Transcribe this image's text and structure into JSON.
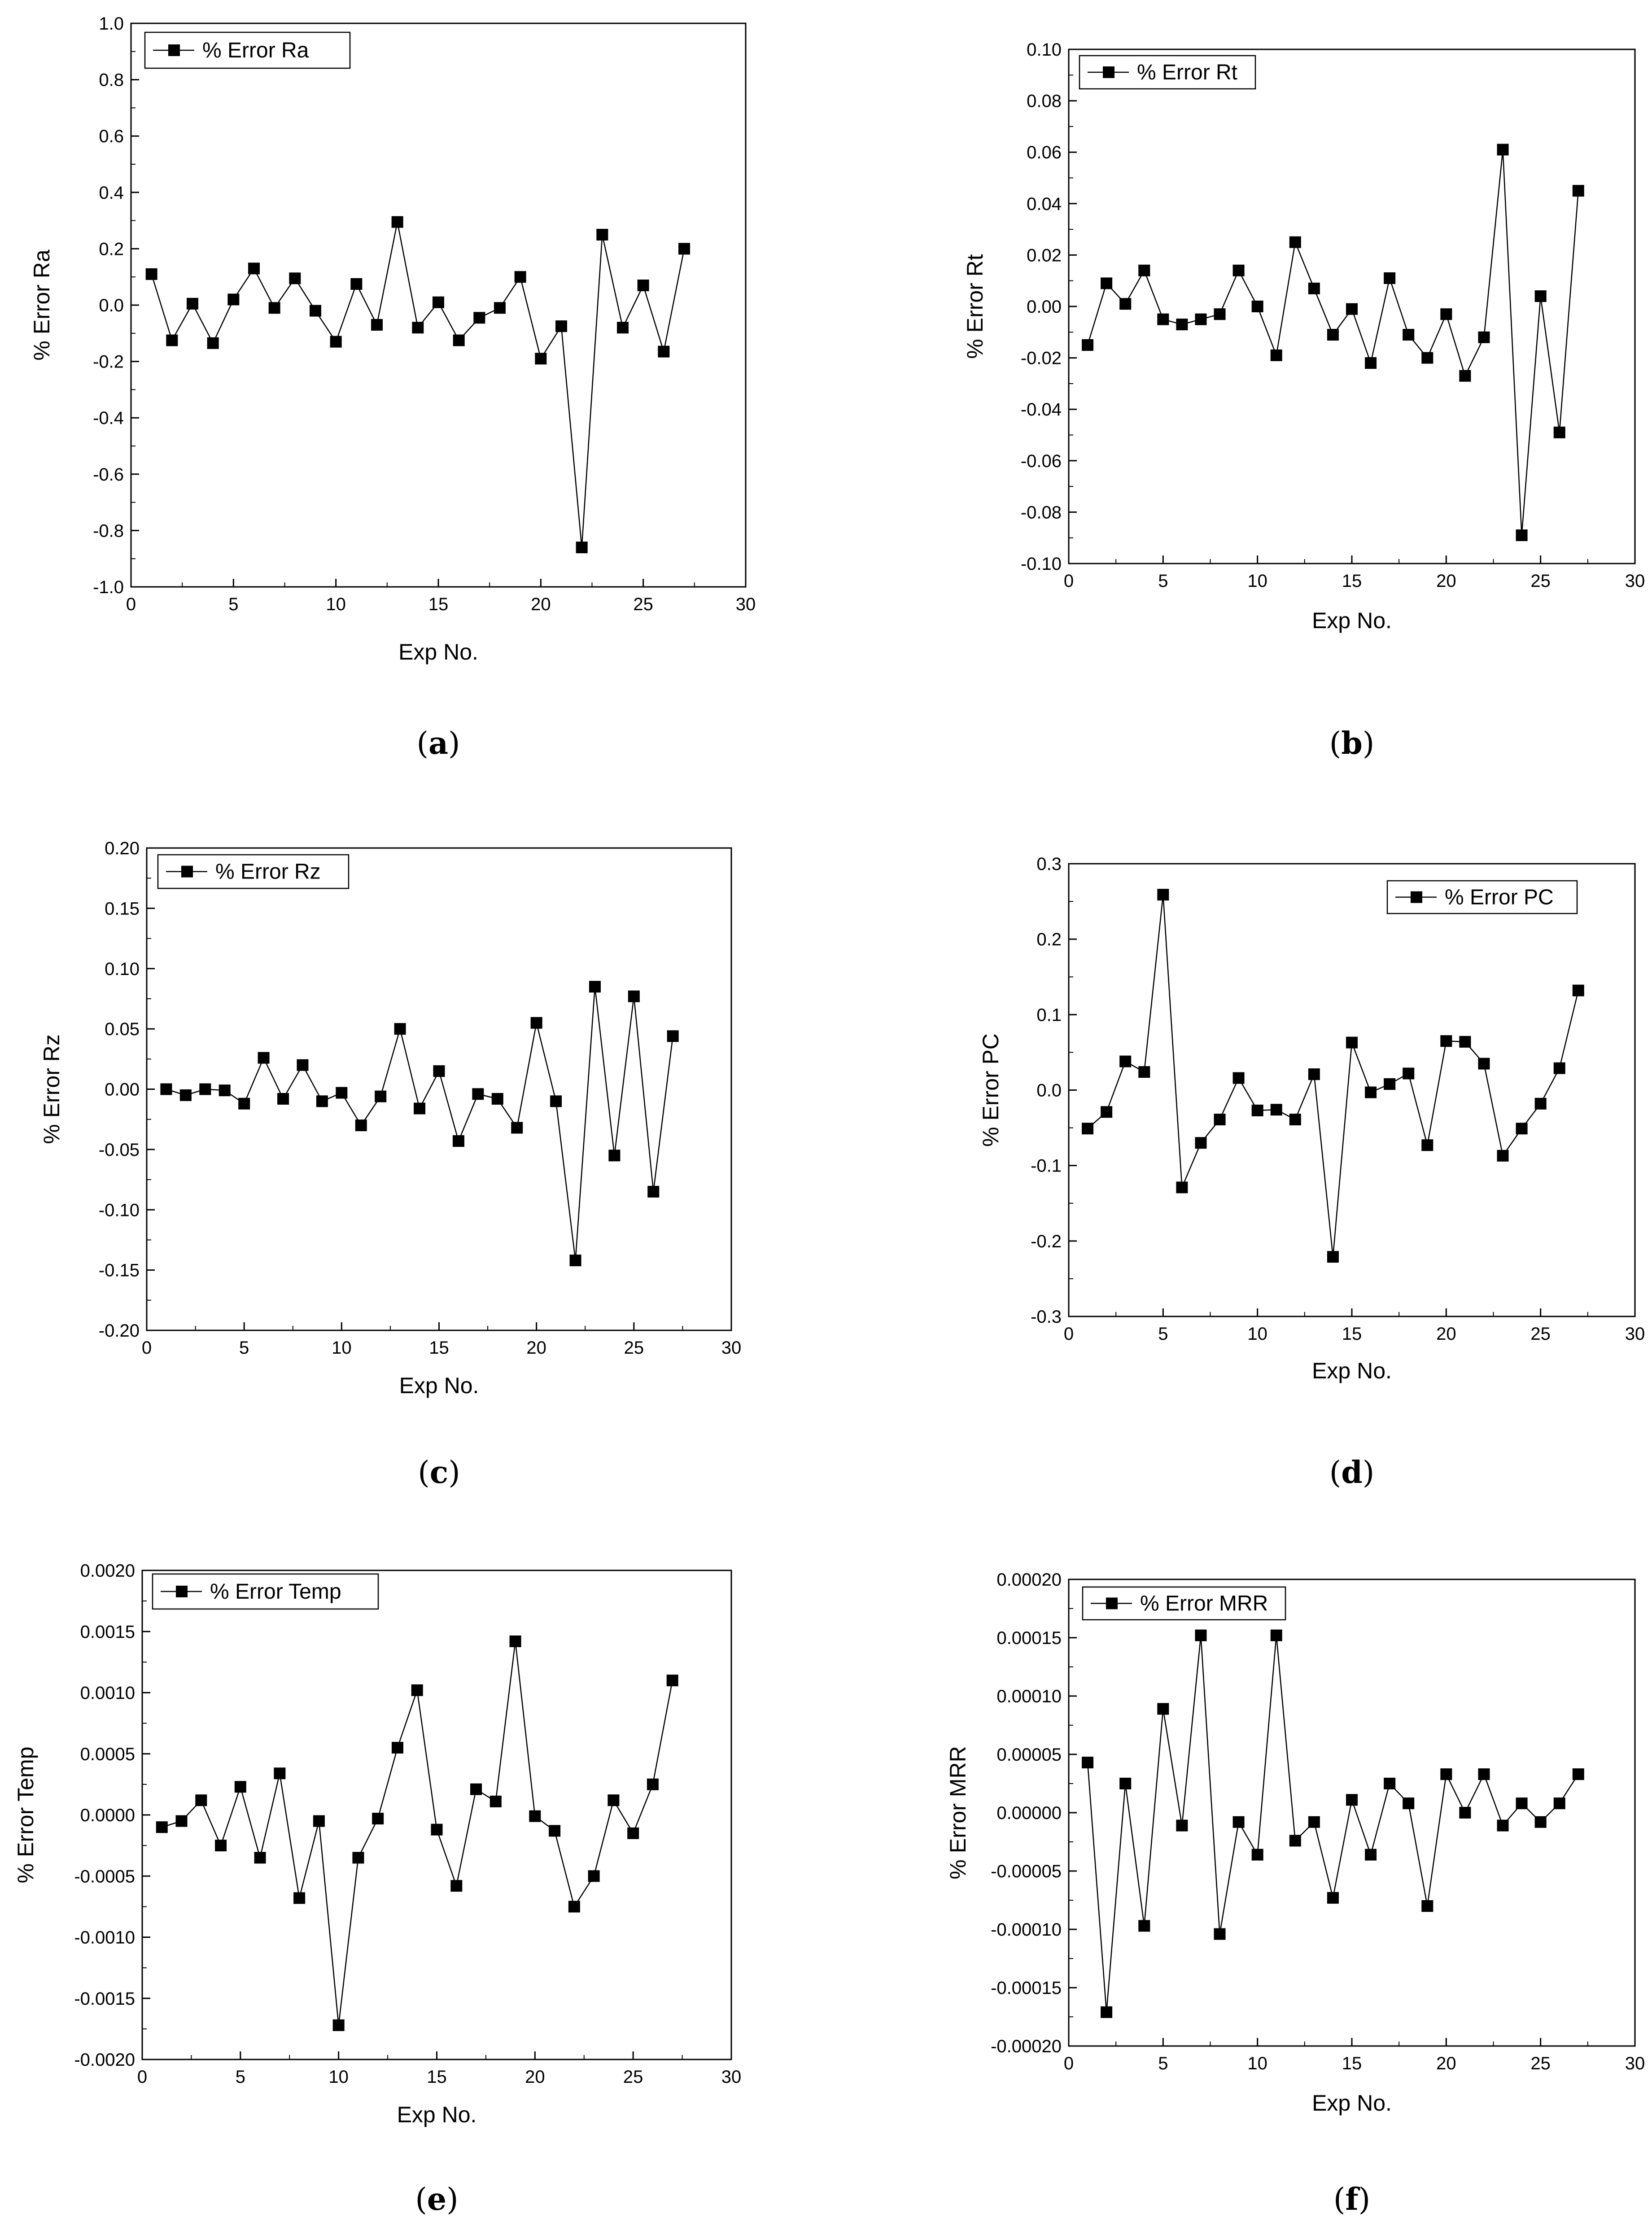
{
  "chart_data": [
    {
      "type": "line",
      "panel_label": "a",
      "title": "",
      "xlabel": "Exp No.",
      "ylabel": "% Error Ra",
      "xlim": [
        0,
        30
      ],
      "ylim": [
        -1.0,
        1.0
      ],
      "xticks": [
        0,
        5,
        10,
        15,
        20,
        25,
        30
      ],
      "yticks": [
        "-1.0",
        "-0.8",
        "-0.6",
        "-0.4",
        "-0.2",
        "0.0",
        "0.2",
        "0.4",
        "0.6",
        "0.8",
        "1.0"
      ],
      "legend_position": "top-left",
      "series": [
        {
          "name": "% Error Ra",
          "x": [
            1,
            2,
            3,
            4,
            5,
            6,
            7,
            8,
            9,
            10,
            11,
            12,
            13,
            14,
            15,
            16,
            17,
            18,
            19,
            20,
            21,
            22,
            23,
            24,
            25,
            26,
            27
          ],
          "y": [
            0.11,
            -0.125,
            0.005,
            -0.135,
            0.02,
            0.13,
            -0.01,
            0.095,
            -0.02,
            -0.13,
            0.075,
            -0.07,
            0.295,
            -0.08,
            0.01,
            -0.125,
            -0.045,
            -0.01,
            0.1,
            -0.19,
            -0.075,
            -0.86,
            0.25,
            -0.08,
            0.07,
            -0.165,
            0.2
          ]
        }
      ]
    },
    {
      "type": "line",
      "panel_label": "b",
      "title": "",
      "xlabel": "Exp No.",
      "ylabel": "% Error Rt",
      "xlim": [
        0,
        30
      ],
      "ylim": [
        -0.1,
        0.1
      ],
      "xticks": [
        0,
        5,
        10,
        15,
        20,
        25,
        30
      ],
      "yticks": [
        "-0.10",
        "-0.08",
        "-0.06",
        "-0.04",
        "-0.02",
        "0.00",
        "0.02",
        "0.04",
        "0.06",
        "0.08",
        "0.10"
      ],
      "legend_position": "top-left",
      "series": [
        {
          "name": "% Error Rt",
          "x": [
            1,
            2,
            3,
            4,
            5,
            6,
            7,
            8,
            9,
            10,
            11,
            12,
            13,
            14,
            15,
            16,
            17,
            18,
            19,
            20,
            21,
            22,
            23,
            24,
            25,
            26,
            27
          ],
          "y": [
            -0.015,
            0.009,
            0.001,
            0.014,
            -0.005,
            -0.007,
            -0.005,
            -0.003,
            0.014,
            0.0,
            -0.019,
            0.025,
            0.007,
            -0.011,
            -0.001,
            -0.022,
            0.011,
            -0.011,
            -0.02,
            -0.003,
            -0.027,
            -0.012,
            0.061,
            -0.089,
            0.004,
            -0.049,
            0.045
          ]
        }
      ]
    },
    {
      "type": "line",
      "panel_label": "c",
      "title": "",
      "xlabel": "Exp No.",
      "ylabel": "% Error Rz",
      "xlim": [
        0,
        30
      ],
      "ylim": [
        -0.2,
        0.2
      ],
      "xticks": [
        0,
        5,
        10,
        15,
        20,
        25,
        30
      ],
      "yticks": [
        "-0.20",
        "-0.15",
        "-0.10",
        "-0.05",
        "0.00",
        "0.05",
        "0.10",
        "0.15",
        "0.20"
      ],
      "legend_position": "top-left",
      "series": [
        {
          "name": "% Error Rz",
          "x": [
            1,
            2,
            3,
            4,
            5,
            6,
            7,
            8,
            9,
            10,
            11,
            12,
            13,
            14,
            15,
            16,
            17,
            18,
            19,
            20,
            21,
            22,
            23,
            24,
            25,
            26,
            27
          ],
          "y": [
            0.0,
            -0.005,
            0.0,
            -0.001,
            -0.012,
            0.026,
            -0.008,
            0.02,
            -0.01,
            -0.003,
            -0.03,
            -0.006,
            0.05,
            -0.016,
            0.015,
            -0.043,
            -0.004,
            -0.008,
            -0.032,
            0.055,
            -0.01,
            -0.142,
            0.085,
            -0.055,
            0.077,
            -0.085,
            0.044
          ]
        }
      ]
    },
    {
      "type": "line",
      "panel_label": "d",
      "title": "",
      "xlabel": "Exp No.",
      "ylabel": "% Error PC",
      "xlim": [
        0,
        30
      ],
      "ylim": [
        -0.3,
        0.3
      ],
      "xticks": [
        0,
        5,
        10,
        15,
        20,
        25,
        30
      ],
      "yticks": [
        "-0.3",
        "-0.2",
        "-0.1",
        "0.0",
        "0.1",
        "0.2",
        "0.3"
      ],
      "legend_position": "top-right",
      "series": [
        {
          "name": "% Error PC",
          "x": [
            1,
            2,
            3,
            4,
            5,
            6,
            7,
            8,
            9,
            10,
            11,
            12,
            13,
            14,
            15,
            16,
            17,
            18,
            19,
            20,
            21,
            22,
            23,
            24,
            25,
            26,
            27
          ],
          "y": [
            -0.051,
            -0.029,
            0.038,
            0.024,
            0.259,
            -0.129,
            -0.07,
            -0.039,
            0.016,
            -0.027,
            -0.026,
            -0.039,
            0.021,
            -0.221,
            0.063,
            -0.003,
            0.008,
            0.022,
            -0.073,
            0.065,
            0.064,
            0.035,
            -0.087,
            -0.051,
            -0.018,
            0.029,
            0.132
          ]
        }
      ]
    },
    {
      "type": "line",
      "panel_label": "e",
      "title": "",
      "xlabel": "Exp No.",
      "ylabel": "% Error Temp",
      "xlim": [
        0,
        30
      ],
      "ylim": [
        -0.002,
        0.002
      ],
      "xticks": [
        0,
        5,
        10,
        15,
        20,
        25,
        30
      ],
      "yticks": [
        "-0.0020",
        "-0.0015",
        "-0.0010",
        "-0.0005",
        "0.0000",
        "0.0005",
        "0.0010",
        "0.0015",
        "0.0020"
      ],
      "legend_position": "top-left",
      "series": [
        {
          "name": "% Error Temp",
          "x": [
            1,
            2,
            3,
            4,
            5,
            6,
            7,
            8,
            9,
            10,
            11,
            12,
            13,
            14,
            15,
            16,
            17,
            18,
            19,
            20,
            21,
            22,
            23,
            24,
            25,
            26,
            27
          ],
          "y": [
            -0.0001,
            -5e-05,
            0.00012,
            -0.00025,
            0.00023,
            -0.00035,
            0.00034,
            -0.00068,
            -5e-05,
            -0.00172,
            -0.00035,
            -3e-05,
            0.00055,
            0.00102,
            -0.00012,
            -0.00058,
            0.00021,
            0.00011,
            0.00142,
            -1e-05,
            -0.00013,
            -0.00075,
            -0.0005,
            0.00012,
            -0.00015,
            0.00025,
            0.0011
          ]
        }
      ]
    },
    {
      "type": "line",
      "panel_label": "f",
      "title": "",
      "xlabel": "Exp No.",
      "ylabel": "% Error MRR",
      "xlim": [
        0,
        30
      ],
      "ylim": [
        -0.0002,
        0.0002
      ],
      "xticks": [
        0,
        5,
        10,
        15,
        20,
        25,
        30
      ],
      "yticks": [
        "-0.00020",
        "-0.00015",
        "-0.00010",
        "-0.00005",
        "0.00000",
        "0.00005",
        "0.00010",
        "0.00015",
        "0.00020"
      ],
      "legend_position": "top-left",
      "series": [
        {
          "name": "% Error MRR",
          "x": [
            1,
            2,
            3,
            4,
            5,
            6,
            7,
            8,
            9,
            10,
            11,
            12,
            13,
            14,
            15,
            16,
            17,
            18,
            19,
            20,
            21,
            22,
            23,
            24,
            25,
            26,
            27
          ],
          "y": [
            4.3e-05,
            -0.000171,
            2.5e-05,
            -9.7e-05,
            8.9e-05,
            -1.1e-05,
            0.000152,
            -0.000104,
            -8e-06,
            -3.6e-05,
            0.000152,
            -2.4e-05,
            -8e-06,
            -7.3e-05,
            1.1e-05,
            -3.6e-05,
            2.5e-05,
            8e-06,
            -8e-05,
            3.3e-05,
            0.0,
            3.3e-05,
            -1.1e-05,
            8e-06,
            -8e-06,
            8e-06,
            3.3e-05
          ]
        }
      ]
    }
  ]
}
